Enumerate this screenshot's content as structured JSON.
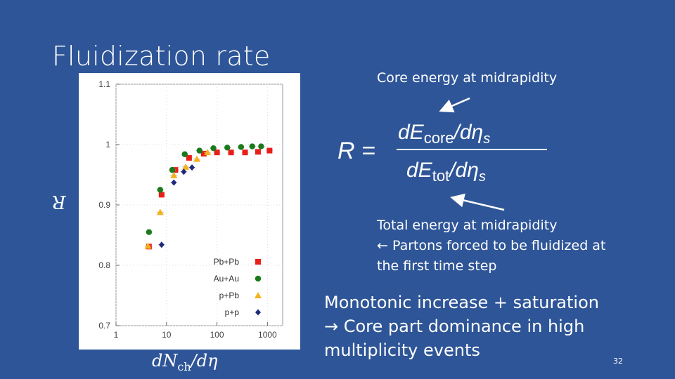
{
  "slide": {
    "title": "Fluidization rate",
    "core_label": "Core energy at midrapidity",
    "formula": {
      "lhs": "R =",
      "numerator": "dE_core/dη_s",
      "denominator": "dE_tot/dη_s"
    },
    "total_line1": "Total energy at midrapidity",
    "total_line2": "← Partons forced to be fluidized at",
    "total_line3": "the first time step",
    "conclusion_line1": "Monotonic increase + saturation",
    "conclusion_line2": "→ Core part dominance in high",
    "conclusion_line3": "multiplicity events",
    "page_number": "32"
  },
  "chart_data": {
    "type": "scatter",
    "title": "",
    "xlabel": "dN_ch/dη",
    "ylabel": "R",
    "xscale": "log",
    "xlim": [
      1,
      2000
    ],
    "ylim": [
      0.7,
      1.1
    ],
    "x_ticks": [
      "1",
      "10",
      "100",
      "1000"
    ],
    "y_ticks": [
      "0.7",
      "0.8",
      "0.9",
      "1",
      "1.1"
    ],
    "legend_position": "bottom-right",
    "series": [
      {
        "name": "Pb+Pb",
        "color": "#e8201a",
        "marker": "square",
        "points": [
          [
            4.5,
            0.831
          ],
          [
            8,
            0.917
          ],
          [
            15,
            0.958
          ],
          [
            28,
            0.978
          ],
          [
            55,
            0.985
          ],
          [
            100,
            0.987
          ],
          [
            190,
            0.987
          ],
          [
            360,
            0.987
          ],
          [
            650,
            0.988
          ],
          [
            1100,
            0.99
          ]
        ]
      },
      {
        "name": "Au+Au",
        "color": "#1a7a1c",
        "marker": "circle",
        "points": [
          [
            4.5,
            0.855
          ],
          [
            7.5,
            0.925
          ],
          [
            13,
            0.958
          ],
          [
            23,
            0.984
          ],
          [
            45,
            0.99
          ],
          [
            85,
            0.994
          ],
          [
            160,
            0.995
          ],
          [
            300,
            0.996
          ],
          [
            500,
            0.997
          ],
          [
            750,
            0.997
          ]
        ]
      },
      {
        "name": "p+Pb",
        "color": "#f4b21c",
        "marker": "triangle",
        "points": [
          [
            4.3,
            0.832
          ],
          [
            7.5,
            0.888
          ],
          [
            14,
            0.949
          ],
          [
            24,
            0.963
          ],
          [
            40,
            0.976
          ],
          [
            65,
            0.987
          ]
        ]
      },
      {
        "name": "p+p",
        "color": "#1f2a7a",
        "marker": "diamond",
        "points": [
          [
            8,
            0.834
          ],
          [
            14,
            0.937
          ],
          [
            22,
            0.955
          ],
          [
            32,
            0.962
          ]
        ]
      }
    ]
  }
}
